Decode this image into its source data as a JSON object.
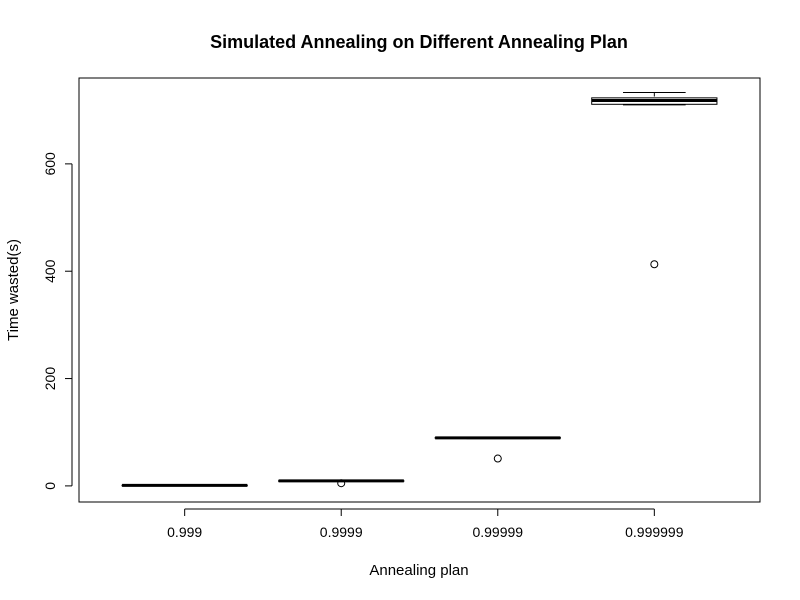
{
  "chart_data": {
    "type": "box",
    "title": "Simulated Annealing on Different Annealing Plan",
    "xlabel": "Annealing plan",
    "ylabel": "Time wasted(s)",
    "categories": [
      "0.999",
      "0.9999",
      "0.99999",
      "0.999999"
    ],
    "ylim": [
      -30,
      760
    ],
    "yticks": [
      0,
      200,
      400,
      600
    ],
    "grid": false,
    "legend": "none",
    "boxes": [
      {
        "category": "0.999",
        "min": 0.5,
        "q1": 0.8,
        "median": 1.0,
        "q3": 1.2,
        "max": 1.5,
        "outliers": []
      },
      {
        "category": "0.9999",
        "min": 8.5,
        "q1": 9.0,
        "median": 9.3,
        "q3": 9.6,
        "max": 10.0,
        "outliers": [
          5
        ]
      },
      {
        "category": "0.99999",
        "min": 88,
        "q1": 89,
        "median": 89.5,
        "q3": 90,
        "max": 91,
        "outliers": [
          51
        ]
      },
      {
        "category": "0.999999",
        "min": 710,
        "q1": 711,
        "median": 718,
        "q3": 723,
        "max": 733,
        "outliers": [
          413
        ]
      }
    ]
  }
}
